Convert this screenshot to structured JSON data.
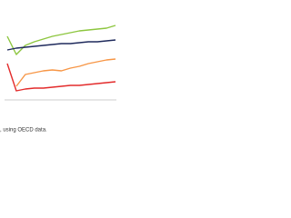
{
  "chart_data": {
    "type": "line",
    "categories": [
      null,
      null,
      null,
      null,
      null,
      null,
      null,
      null,
      null,
      null,
      null,
      null,
      null
    ],
    "series": [
      {
        "color": "#8dc63f",
        "values": [
          70,
          50,
          60,
          64,
          67,
          70,
          72,
          74,
          76,
          77,
          78,
          79,
          82
        ]
      },
      {
        "color": "#1f2a5c",
        "values": [
          55,
          57,
          58,
          59,
          60,
          61,
          62,
          62,
          63,
          64,
          64,
          65,
          66
        ]
      },
      {
        "color": "#f79646",
        "values": [
          null,
          15,
          28,
          30,
          32,
          33,
          32,
          35,
          37,
          40,
          42,
          44,
          45
        ]
      },
      {
        "color": "#e32b2b",
        "values": [
          40,
          10,
          12,
          13,
          13,
          14,
          15,
          16,
          16,
          17,
          18,
          19,
          20
        ]
      }
    ],
    "ylim": [
      0,
      100
    ],
    "note": ", using OECD data."
  }
}
